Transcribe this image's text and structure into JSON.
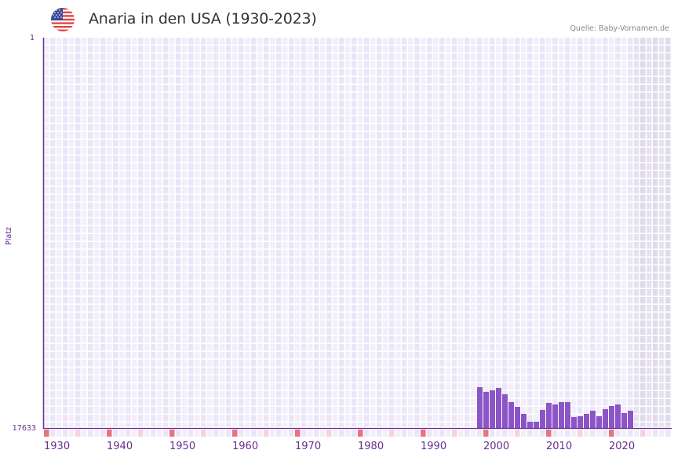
{
  "header": {
    "title": "Anaria in den USA (1930-2023)",
    "source": "Quelle: Baby-Vornamen.de",
    "flag_icon": "us-flag-icon"
  },
  "axes": {
    "y_top_tick": "1",
    "y_bottom_tick": "17633",
    "y_label": "Platz",
    "x_ticks": [
      "1930",
      "1940",
      "1950",
      "1960",
      "1970",
      "1980",
      "1990",
      "2000",
      "2010",
      "2020"
    ]
  },
  "colors": {
    "bar": "#8b55c8",
    "axis": "#6a2c91",
    "decade_marker": "#e57380",
    "half_decade_marker": "#f5d3dc",
    "cell_a": "#f2effb",
    "cell_b": "#ebe6f7",
    "future_a": "#e6e2ef",
    "future_b": "#e0dbea"
  },
  "chart_data": {
    "type": "bar",
    "title": "Anaria in den USA (1930-2023)",
    "xlabel": "",
    "ylabel": "Platz",
    "ylim": [
      17633,
      1
    ],
    "y_inverted": true,
    "x_range": [
      1930,
      2030
    ],
    "grid": true,
    "legend": "none",
    "annotations": [
      "Quelle: Baby-Vornamen.de"
    ],
    "categories": [
      1999,
      2000,
      2001,
      2002,
      2003,
      2004,
      2005,
      2006,
      2007,
      2008,
      2009,
      2010,
      2011,
      2012,
      2013,
      2014,
      2015,
      2016,
      2017,
      2018,
      2019,
      2020,
      2021,
      2022,
      2023
    ],
    "values": [
      15788,
      15999,
      15929,
      15823,
      16107,
      16461,
      16674,
      16993,
      17348,
      17348,
      16816,
      16497,
      16568,
      16461,
      16461,
      17135,
      17100,
      16993,
      16851,
      17100,
      16781,
      16639,
      16568,
      16958,
      16851
    ]
  }
}
